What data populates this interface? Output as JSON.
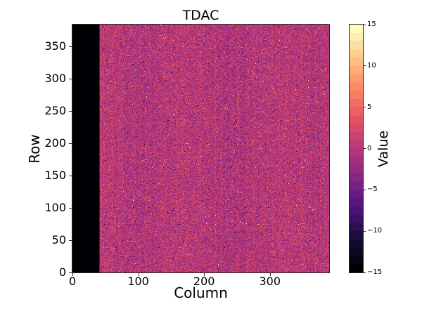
{
  "figure": {
    "background": "#ffffff",
    "text_color": "#000000"
  },
  "chart_data": {
    "type": "heatmap",
    "title": "TDAC",
    "xlabel": "Column",
    "ylabel": "Row",
    "x_range": [
      0,
      390
    ],
    "y_range": [
      0,
      384
    ],
    "x_ticks": [
      0,
      100,
      200,
      300
    ],
    "y_ticks": [
      0,
      50,
      100,
      150,
      200,
      250,
      300,
      350
    ],
    "grid": false,
    "colorbar": {
      "label": "Value",
      "ticks": [
        15,
        10,
        5,
        0,
        -5,
        -10,
        -15
      ],
      "vmin": -15,
      "vmax": 15,
      "levels": 30,
      "colormap": "magma"
    },
    "colormap_stops": [
      [
        0.0,
        "#000004"
      ],
      [
        0.125,
        "#140e36"
      ],
      [
        0.25,
        "#51127c"
      ],
      [
        0.375,
        "#832681"
      ],
      [
        0.5,
        "#b73779"
      ],
      [
        0.625,
        "#e75263"
      ],
      [
        0.75,
        "#fb8761"
      ],
      [
        0.875,
        "#fec488"
      ],
      [
        1.0,
        "#fcfdbf"
      ]
    ],
    "data_model": {
      "description": "Per-pixel integer TDAC map. Columns 0-40 are a solid masked band at the minimum value (black). All other pixels are random noise centered on 0 (magenta) with sparse bright (orange/white, up to +15) and dark (purple/black, down to -15) outliers and faint vertical column-to-column variation.",
      "rows": 384,
      "cols": 390,
      "masked_band": {
        "col_start": 0,
        "col_end": 40,
        "value": -15
      },
      "noise_mean": 0,
      "noise_sigma": 2.3,
      "column_variation_sigma": 0.4,
      "outlier_fraction": 0.012,
      "outlier_min_abs": 8,
      "outlier_max_abs": 15,
      "seed": 42
    }
  }
}
